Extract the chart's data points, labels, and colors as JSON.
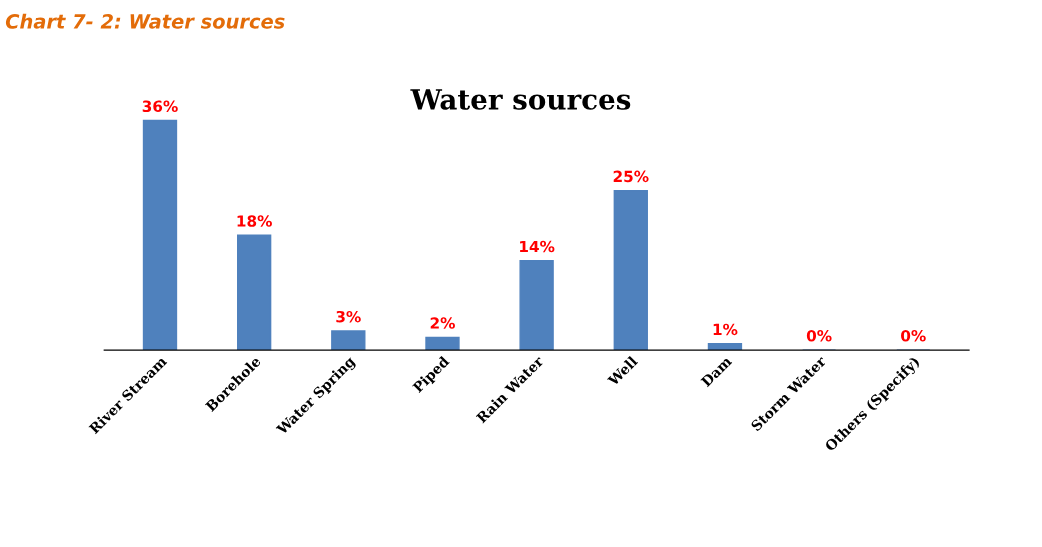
{
  "chart_data": {
    "type": "bar",
    "title": "Water sources",
    "subtitle": "Chart 7- 2: Water sources",
    "categories": [
      "River Stream",
      "Borehole",
      "Water Spring",
      "Piped",
      "Rain Water",
      "Well",
      "Dam",
      "Storm Water",
      "Others (Specify)"
    ],
    "values": [
      36,
      18,
      3,
      2,
      14,
      25,
      1,
      0,
      0
    ],
    "value_labels": [
      "36%",
      "18%",
      "3%",
      "2%",
      "14%",
      "25%",
      "1%",
      "0%",
      "0%"
    ],
    "color": "#4f81bd",
    "grid": false,
    "legend": false
  }
}
